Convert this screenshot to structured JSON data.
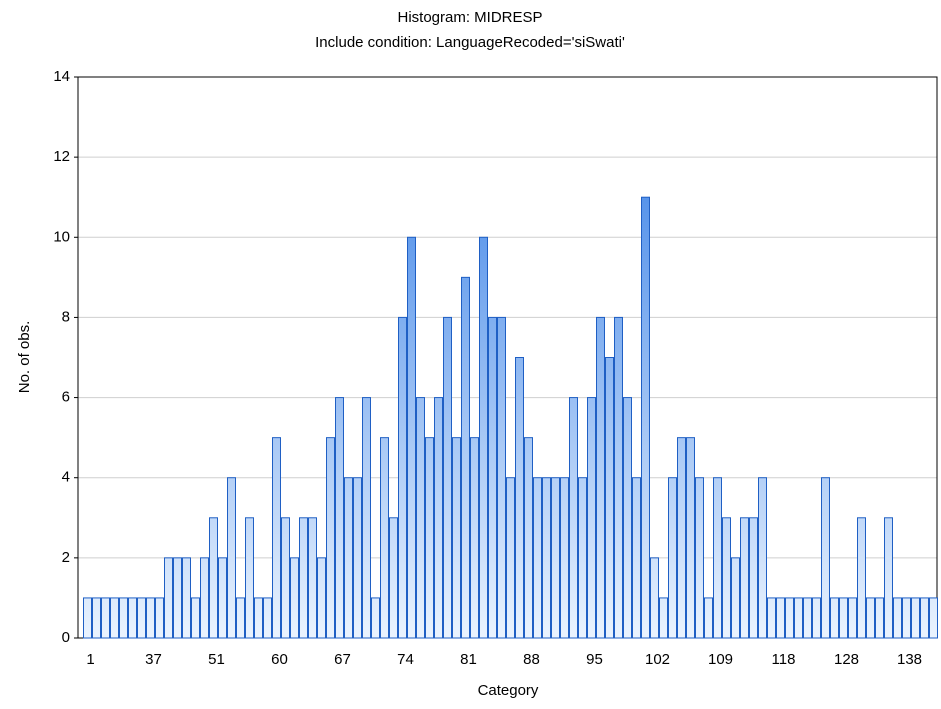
{
  "chart_data": {
    "type": "bar",
    "title": "Histogram: MIDRESP",
    "subtitle": "Include condition: LanguageRecoded='siSwati'",
    "x_label": "Category",
    "y_label": "No. of obs.",
    "categories": [
      "1",
      null,
      null,
      null,
      null,
      null,
      null,
      "37",
      null,
      null,
      null,
      null,
      null,
      null,
      "51",
      null,
      null,
      null,
      null,
      null,
      null,
      "60",
      null,
      null,
      null,
      null,
      null,
      null,
      "67",
      null,
      null,
      null,
      null,
      null,
      null,
      "74",
      null,
      null,
      null,
      null,
      null,
      null,
      "81",
      null,
      null,
      null,
      null,
      null,
      null,
      "88",
      null,
      null,
      null,
      null,
      null,
      null,
      "95",
      null,
      null,
      null,
      null,
      null,
      null,
      "102",
      null,
      null,
      null,
      null,
      null,
      null,
      "109",
      null,
      null,
      null,
      null,
      null,
      null,
      "118",
      null,
      null,
      null,
      null,
      null,
      null,
      "128",
      null,
      null,
      null,
      null,
      null,
      null,
      "138",
      null,
      null,
      null
    ],
    "values": [
      1,
      1,
      1,
      1,
      1,
      1,
      1,
      1,
      1,
      2,
      2,
      2,
      1,
      2,
      3,
      2,
      4,
      1,
      3,
      1,
      1,
      5,
      3,
      2,
      3,
      3,
      2,
      5,
      6,
      4,
      4,
      6,
      1,
      5,
      3,
      8,
      10,
      6,
      5,
      6,
      8,
      5,
      9,
      5,
      10,
      8,
      8,
      4,
      7,
      5,
      4,
      4,
      4,
      4,
      6,
      4,
      6,
      8,
      7,
      8,
      6,
      4,
      11,
      2,
      1,
      4,
      5,
      5,
      4,
      1,
      4,
      3,
      2,
      3,
      3,
      4,
      1,
      1,
      1,
      1,
      1,
      1,
      4,
      1,
      1,
      1,
      3,
      1,
      1,
      3,
      1,
      1,
      1,
      1,
      1
    ],
    "color": "#2f7ae5",
    "ylim": [
      0,
      14
    ],
    "yticks": [
      0,
      2,
      4,
      6,
      8,
      10,
      12,
      14
    ],
    "grid": true
  }
}
